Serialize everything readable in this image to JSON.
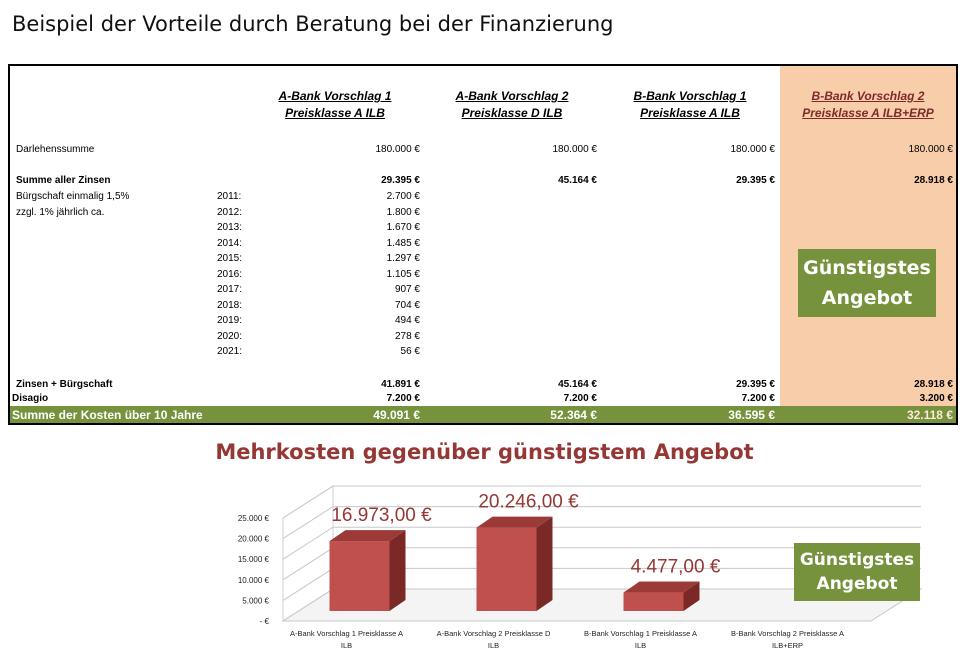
{
  "title": "Beispiel der Vorteile durch Beratung bei der Finanzierung",
  "columns": [
    {
      "line1": "A-Bank Vorschlag 1",
      "line2": "Preisklasse A ILB"
    },
    {
      "line1": "A-Bank Vorschlag 2",
      "line2": "Preisklasse D ILB"
    },
    {
      "line1": "B-Bank Vorschlag 1",
      "line2": "Preisklasse A ILB"
    },
    {
      "line1": "B-Bank Vorschlag 2",
      "line2": "Preisklasse A ILB+ERP"
    }
  ],
  "rows": {
    "darlehen": {
      "label": "Darlehenssumme",
      "values": [
        "180.000 €",
        "180.000 €",
        "180.000 €",
        "180.000 €"
      ]
    },
    "zinsen": {
      "label": "Summe aller Zinsen",
      "values": [
        "29.395 €",
        "45.164 €",
        "29.395 €",
        "28.918 €"
      ]
    },
    "buergschaft_note1": "Bürgschaft einmalig 1,5%",
    "buergschaft_note2": "zzgl. 1% jährlich ca.",
    "years": [
      {
        "year": "2011:",
        "value": "2.700 €"
      },
      {
        "year": "2012:",
        "value": "1.800 €"
      },
      {
        "year": "2013:",
        "value": "1.670 €"
      },
      {
        "year": "2014:",
        "value": "1.485 €"
      },
      {
        "year": "2015:",
        "value": "1.297 €"
      },
      {
        "year": "2016:",
        "value": "1.105 €"
      },
      {
        "year": "2017:",
        "value": "907 €"
      },
      {
        "year": "2018:",
        "value": "704 €"
      },
      {
        "year": "2019:",
        "value": "494 €"
      },
      {
        "year": "2020:",
        "value": "278 €"
      },
      {
        "year": "2021:",
        "value": "56 €"
      }
    ],
    "zinsen_buergschaft": {
      "label": "Zinsen + Bürgschaft",
      "values": [
        "41.891 €",
        "45.164 €",
        "29.395 €",
        "28.918 €"
      ]
    },
    "disagio": {
      "label": "Disagio",
      "values": [
        "7.200 €",
        "7.200 €",
        "7.200 €",
        "3.200 €"
      ]
    },
    "summe": {
      "label": "Summe der Kosten über 10 Jahre",
      "values": [
        "49.091 €",
        "52.364 €",
        "36.595 €",
        "32.118 €"
      ]
    }
  },
  "badge": {
    "line1": "Günstigstes",
    "line2": "Angebot"
  },
  "colors": {
    "accent_green": "#76923c",
    "best_column": "#f8cdaa",
    "bar": "#c0504d",
    "title_red": "#953735"
  },
  "chart_data": {
    "type": "bar",
    "title": "Mehrkosten gegenüber günstigstem Angebot",
    "categories": [
      "A-Bank Vorschlag 1 Preisklasse A ILB",
      "A-Bank Vorschlag 2 Preisklasse D ILB",
      "B-Bank Vorschlag 1 Preisklasse A ILB",
      "B-Bank Vorschlag 2 Preisklasse A ILB+ERP"
    ],
    "values": [
      16973,
      20246,
      4477,
      0
    ],
    "data_labels": [
      "16.973,00 €",
      "20.246,00 €",
      "4.477,00 €",
      ""
    ],
    "ytick_labels": [
      "- €",
      "5.000 €",
      "10.000 €",
      "15.000 €",
      "20.000 €",
      "25.000 €"
    ],
    "ylim": [
      0,
      25000
    ],
    "grid": true,
    "style": "3d",
    "xlabel": "",
    "ylabel": ""
  }
}
